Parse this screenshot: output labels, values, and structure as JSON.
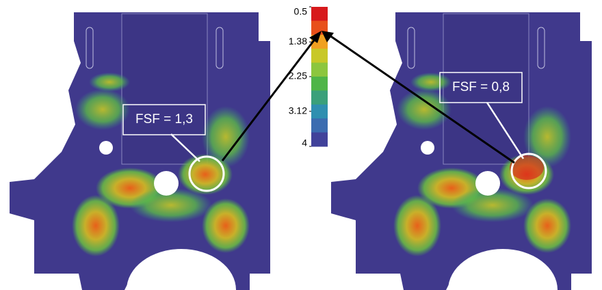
{
  "colorbar": {
    "ticks": [
      0.5,
      1.38,
      2.25,
      3.12,
      4
    ],
    "colors": [
      "#d7191c",
      "#e8501a",
      "#f0a020",
      "#c8c828",
      "#8cc63e",
      "#4fb548",
      "#3aa07a",
      "#2f8fb0",
      "#3b6cb0",
      "#41429a"
    ]
  },
  "annotations": [
    {
      "label": "FSF = 1,3"
    },
    {
      "label": "FSF = 0,8"
    }
  ]
}
